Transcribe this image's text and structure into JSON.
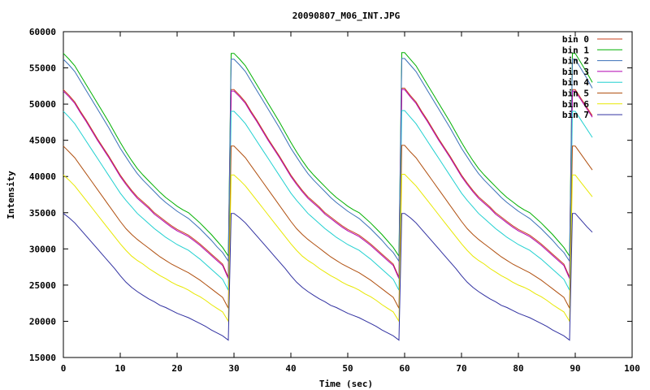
{
  "chart_data": {
    "type": "line",
    "title": "20090807_M06_INT.JPG",
    "xlabel": "Time (sec)",
    "ylabel": "Intensity",
    "xlim": [
      0,
      100
    ],
    "ylim": [
      15000,
      60000
    ],
    "xticks": [
      0,
      10,
      20,
      30,
      40,
      50,
      60,
      70,
      80,
      90,
      100
    ],
    "yticks": [
      15000,
      20000,
      25000,
      30000,
      35000,
      40000,
      45000,
      50000,
      55000,
      60000
    ],
    "grid": false,
    "legend_position": "top-right",
    "x": [
      0,
      1,
      2,
      3,
      4,
      5,
      6,
      7,
      8,
      9,
      10,
      11,
      12,
      13,
      14,
      15,
      16,
      17,
      18,
      19,
      20,
      21,
      22,
      23,
      24,
      25,
      26,
      27,
      28,
      29,
      29.5,
      30,
      31,
      32,
      33,
      34,
      35,
      36,
      37,
      38,
      39,
      40,
      41,
      42,
      43,
      44,
      45,
      46,
      47,
      48,
      49,
      50,
      51,
      52,
      53,
      54,
      55,
      56,
      57,
      58,
      59,
      59.5,
      60,
      61,
      62,
      63,
      64,
      65,
      66,
      67,
      68,
      69,
      70,
      71,
      72,
      73,
      74,
      75,
      76,
      77,
      78,
      79,
      80,
      81,
      82,
      83,
      84,
      85,
      86,
      87,
      88,
      89,
      89.5,
      90,
      91,
      92,
      93
    ],
    "series": [
      {
        "name": "bin 0",
        "color": "#c8421e",
        "values": [
          52000,
          51200,
          50300,
          49000,
          47800,
          46500,
          45200,
          44000,
          42800,
          41500,
          40200,
          39100,
          38100,
          37200,
          36500,
          35800,
          35000,
          34400,
          33800,
          33200,
          32700,
          32300,
          31900,
          31300,
          30700,
          30000,
          29300,
          28600,
          27900,
          26100,
          52000,
          52000,
          51200,
          50300,
          49000,
          47800,
          46500,
          45200,
          44000,
          42800,
          41500,
          40200,
          39100,
          38100,
          37200,
          36500,
          35800,
          35000,
          34400,
          33800,
          33200,
          32700,
          32300,
          31900,
          31300,
          30700,
          30000,
          29300,
          28600,
          27900,
          26100,
          52200,
          52200,
          51200,
          50300,
          49000,
          47800,
          46500,
          45200,
          44000,
          42800,
          41500,
          40200,
          39100,
          38100,
          37200,
          36500,
          35800,
          35000,
          34400,
          33800,
          33200,
          32700,
          32300,
          31900,
          31300,
          30700,
          30000,
          29300,
          28600,
          27900,
          26100,
          52000,
          52000,
          50800,
          49600,
          48400
        ]
      },
      {
        "name": "bin 1",
        "color": "#00b000",
        "values": [
          57000,
          56200,
          55300,
          54000,
          52700,
          51400,
          50100,
          48800,
          47500,
          46100,
          44700,
          43400,
          42200,
          41100,
          40200,
          39400,
          38600,
          37800,
          37100,
          36500,
          35900,
          35400,
          35000,
          34300,
          33600,
          32800,
          32000,
          31100,
          30200,
          29000,
          57000,
          57000,
          56200,
          55300,
          54000,
          52700,
          51400,
          50100,
          48800,
          47500,
          46100,
          44700,
          43400,
          42200,
          41100,
          40200,
          39400,
          38600,
          37800,
          37100,
          36500,
          35900,
          35400,
          35000,
          34300,
          33600,
          32800,
          32000,
          31100,
          30200,
          29000,
          57100,
          57100,
          56200,
          55300,
          54000,
          52700,
          51400,
          50100,
          48800,
          47500,
          46100,
          44700,
          43400,
          42200,
          41100,
          40200,
          39400,
          38600,
          37800,
          37100,
          36500,
          35900,
          35400,
          35000,
          34300,
          33600,
          32800,
          32000,
          31100,
          30200,
          29000,
          57000,
          57000,
          55700,
          54400,
          53000
        ]
      },
      {
        "name": "bin 2",
        "color": "#3a6fb8",
        "values": [
          56200,
          55400,
          54500,
          53200,
          51900,
          50600,
          49300,
          48000,
          46700,
          45300,
          43900,
          42700,
          41500,
          40400,
          39500,
          38700,
          37900,
          37100,
          36400,
          35800,
          35200,
          34700,
          34200,
          33500,
          32800,
          32000,
          31200,
          30300,
          29500,
          28300,
          56200,
          56200,
          55400,
          54500,
          53200,
          51900,
          50600,
          49300,
          48000,
          46700,
          45300,
          43900,
          42700,
          41500,
          40400,
          39500,
          38700,
          37900,
          37100,
          36400,
          35800,
          35200,
          34700,
          34200,
          33500,
          32800,
          32000,
          31200,
          30300,
          29500,
          28300,
          56300,
          56300,
          55400,
          54500,
          53200,
          51900,
          50600,
          49300,
          48000,
          46700,
          45300,
          43900,
          42700,
          41500,
          40400,
          39500,
          38700,
          37900,
          37100,
          36400,
          35800,
          35200,
          34700,
          34200,
          33500,
          32800,
          32000,
          31200,
          30300,
          29500,
          28300,
          56200,
          56200,
          54900,
          53600,
          52200
        ]
      },
      {
        "name": "bin 3",
        "color": "#b000b0",
        "values": [
          51800,
          51000,
          50100,
          48800,
          47600,
          46300,
          45000,
          43800,
          42600,
          41300,
          40000,
          38900,
          37900,
          37000,
          36300,
          35600,
          34800,
          34200,
          33600,
          33000,
          32500,
          32100,
          31700,
          31100,
          30500,
          29800,
          29100,
          28400,
          27700,
          25900,
          51800,
          51800,
          51000,
          50100,
          48800,
          47600,
          46300,
          45000,
          43800,
          42600,
          41300,
          40000,
          38900,
          37900,
          37000,
          36300,
          35600,
          34800,
          34200,
          33600,
          33000,
          32500,
          32100,
          31700,
          31100,
          30500,
          29800,
          29100,
          28400,
          27700,
          25900,
          52000,
          52000,
          51000,
          50100,
          48800,
          47600,
          46300,
          45000,
          43800,
          42600,
          41300,
          40000,
          38900,
          37900,
          37000,
          36300,
          35600,
          34800,
          34200,
          33600,
          33000,
          32500,
          32100,
          31700,
          31100,
          30500,
          29800,
          29100,
          28400,
          27700,
          25900,
          51800,
          51800,
          50600,
          49400,
          48200
        ]
      },
      {
        "name": "bin 4",
        "color": "#20d0d0",
        "values": [
          49000,
          48200,
          47300,
          46100,
          44900,
          43700,
          42500,
          41300,
          40100,
          38900,
          37700,
          36700,
          35800,
          34900,
          34200,
          33500,
          32800,
          32200,
          31600,
          31100,
          30600,
          30200,
          29800,
          29200,
          28600,
          27900,
          27200,
          26500,
          25800,
          24300,
          49000,
          49000,
          48200,
          47300,
          46100,
          44900,
          43700,
          42500,
          41300,
          40100,
          38900,
          37700,
          36700,
          35800,
          34900,
          34200,
          33500,
          32800,
          32200,
          31600,
          31100,
          30600,
          30200,
          29800,
          29200,
          28600,
          27900,
          27200,
          26500,
          25800,
          24300,
          49100,
          49100,
          48200,
          47300,
          46100,
          44900,
          43700,
          42500,
          41300,
          40100,
          38900,
          37700,
          36700,
          35800,
          34900,
          34200,
          33500,
          32800,
          32200,
          31600,
          31100,
          30600,
          30200,
          29800,
          29200,
          28600,
          27900,
          27200,
          26500,
          25800,
          24300,
          49000,
          49000,
          47800,
          46600,
          45400
        ]
      },
      {
        "name": "bin 5",
        "color": "#b05010",
        "values": [
          44200,
          43400,
          42600,
          41500,
          40400,
          39300,
          38200,
          37100,
          36000,
          34900,
          33800,
          32800,
          32000,
          31300,
          30700,
          30100,
          29500,
          28900,
          28400,
          27900,
          27500,
          27100,
          26700,
          26200,
          25700,
          25100,
          24500,
          23900,
          23300,
          21800,
          44200,
          44200,
          43400,
          42600,
          41500,
          40400,
          39300,
          38200,
          37100,
          36000,
          34900,
          33800,
          32800,
          32000,
          31300,
          30700,
          30100,
          29500,
          28900,
          28400,
          27900,
          27500,
          27100,
          26700,
          26200,
          25700,
          25100,
          24500,
          23900,
          23300,
          21800,
          44300,
          44300,
          43400,
          42600,
          41500,
          40400,
          39300,
          38200,
          37100,
          36000,
          34900,
          33800,
          32800,
          32000,
          31300,
          30700,
          30100,
          29500,
          28900,
          28400,
          27900,
          27500,
          27100,
          26700,
          26200,
          25700,
          25100,
          24500,
          23900,
          23300,
          21800,
          44200,
          44200,
          43100,
          42000,
          40900
        ]
      },
      {
        "name": "bin 6",
        "color": "#e8e800",
        "values": [
          40200,
          39500,
          38700,
          37700,
          36700,
          35700,
          34700,
          33700,
          32700,
          31700,
          30700,
          29800,
          29000,
          28400,
          27900,
          27300,
          26800,
          26300,
          25900,
          25400,
          25000,
          24700,
          24300,
          23800,
          23400,
          22900,
          22300,
          21800,
          21300,
          20000,
          40200,
          40200,
          39500,
          38700,
          37700,
          36700,
          35700,
          34700,
          33700,
          32700,
          31700,
          30700,
          29800,
          29000,
          28400,
          27900,
          27300,
          26800,
          26300,
          25900,
          25400,
          25000,
          24700,
          24300,
          23800,
          23400,
          22900,
          22300,
          21800,
          21300,
          20000,
          40300,
          40300,
          39500,
          38700,
          37700,
          36700,
          35700,
          34700,
          33700,
          32700,
          31700,
          30700,
          29800,
          29000,
          28400,
          27900,
          27300,
          26800,
          26300,
          25900,
          25400,
          25000,
          24700,
          24300,
          23800,
          23400,
          22900,
          22300,
          21800,
          21300,
          20000,
          40200,
          40200,
          39200,
          38200,
          37200
        ]
      },
      {
        "name": "bin 7",
        "color": "#3030a0",
        "values": [
          34900,
          34300,
          33600,
          32700,
          31800,
          30900,
          30000,
          29100,
          28200,
          27300,
          26300,
          25400,
          24700,
          24100,
          23600,
          23100,
          22700,
          22200,
          21900,
          21500,
          21100,
          20800,
          20500,
          20100,
          19700,
          19300,
          18800,
          18400,
          18000,
          17400,
          34900,
          34900,
          34300,
          33600,
          32700,
          31800,
          30900,
          30000,
          29100,
          28200,
          27300,
          26300,
          25400,
          24700,
          24100,
          23600,
          23100,
          22700,
          22200,
          21900,
          21500,
          21100,
          20800,
          20500,
          20100,
          19700,
          19300,
          18800,
          18400,
          18000,
          17400,
          34900,
          34900,
          34300,
          33600,
          32700,
          31800,
          30900,
          30000,
          29100,
          28200,
          27300,
          26300,
          25400,
          24700,
          24100,
          23600,
          23100,
          22700,
          22200,
          21900,
          21500,
          21100,
          20800,
          20500,
          20100,
          19700,
          19300,
          18800,
          18400,
          18000,
          17400,
          34900,
          34900,
          34000,
          33100,
          32300
        ]
      }
    ]
  }
}
